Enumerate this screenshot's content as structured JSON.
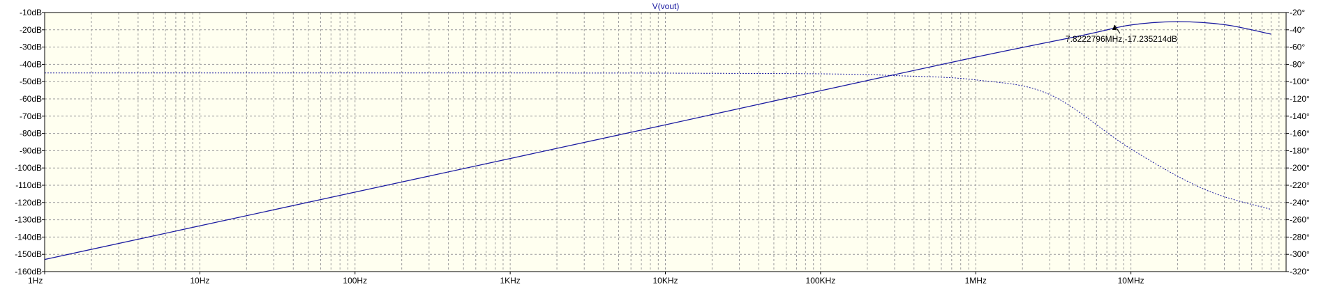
{
  "chart_data": {
    "type": "line",
    "title": "V(vout)",
    "x_scale": "log",
    "xlim": [
      1,
      100000000
    ],
    "x_tick_labels": [
      "1Hz",
      "10Hz",
      "100Hz",
      "1KHz",
      "10KHz",
      "100KHz",
      "1MHz",
      "10MHz"
    ],
    "x_tick_values": [
      1,
      10,
      100,
      1000,
      10000,
      100000,
      1000000,
      10000000
    ],
    "ylim_left": [
      -160,
      -10
    ],
    "y_left_ticks": [
      -10,
      -20,
      -30,
      -40,
      -50,
      -60,
      -70,
      -80,
      -90,
      -100,
      -110,
      -120,
      -130,
      -140,
      -150,
      -160
    ],
    "y_left_tick_labels": [
      "-10dB",
      "-20dB",
      "-30dB",
      "-40dB",
      "-50dB",
      "-60dB",
      "-70dB",
      "-80dB",
      "-90dB",
      "-100dB",
      "-110dB",
      "-120dB",
      "-130dB",
      "-140dB",
      "-150dB",
      "-160dB"
    ],
    "ylim_right": [
      -320,
      -20
    ],
    "y_right_ticks": [
      -20,
      -40,
      -60,
      -80,
      -100,
      -120,
      -140,
      -160,
      -180,
      -200,
      -220,
      -240,
      -260,
      -280,
      -300,
      -320
    ],
    "y_right_tick_labels": [
      "-20°",
      "-40°",
      "-60°",
      "-80°",
      "-100°",
      "-120°",
      "-140°",
      "-160°",
      "-180°",
      "-200°",
      "-220°",
      "-240°",
      "-260°",
      "-280°",
      "-300°",
      "-320°"
    ],
    "grid": true,
    "series": [
      {
        "axis": "left",
        "style": "solid",
        "x": [
          1,
          10,
          100,
          1000,
          10000,
          100000,
          1000000,
          5000000,
          10000000,
          20000000,
          40000000,
          80000000
        ],
        "y": [
          -153,
          -133.5,
          -114,
          -94.5,
          -75,
          -55.3,
          -35.8,
          -23,
          -17.2,
          -15.3,
          -17,
          -22.5
        ]
      },
      {
        "axis": "right",
        "style": "dotted",
        "x": [
          1,
          10,
          100,
          1000,
          10000,
          100000,
          300000,
          1000000,
          3000000,
          10000000,
          30000000,
          80000000
        ],
        "y": [
          -90,
          -90,
          -90,
          -90,
          -90.2,
          -91,
          -93,
          -98,
          -115,
          -178,
          -225,
          -248
        ]
      }
    ],
    "annotation": {
      "text": "7.8222796MHz,-17.235214dB",
      "x": 7822279.6,
      "y": -17.235214
    },
    "colors": {
      "background": "#fffff0",
      "grid": "#9a9a9a",
      "trace": "#1a1aa0",
      "frame": "#000000"
    }
  }
}
